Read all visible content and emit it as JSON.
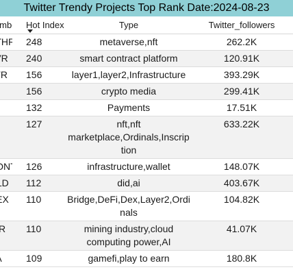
{
  "title": "Twitter Trendy Projects Top Rank Date:2024-08-23",
  "columns": {
    "symbol": "Symbol",
    "hot_index": "Hot Index",
    "type": "Type",
    "twitter_followers": "Twitter_followers"
  },
  "sort": {
    "column": "hot_index",
    "direction": "descending"
  },
  "rows": [
    {
      "symbol": "ETHR",
      "hot_index": "248",
      "type": "metaverse,nft",
      "twitter_followers": "262.2K"
    },
    {
      "symbol": "AVR",
      "hot_index": "240",
      "type": "smart contract platform",
      "twitter_followers": "120.91K"
    },
    {
      "symbol": "ATR",
      "hot_index": "156",
      "type": "layer1,layer2,Infrastructure",
      "twitter_followers": "393.29K"
    },
    {
      "symbol": "",
      "hot_index": "156",
      "type": "crypto media",
      "twitter_followers": "299.41K"
    },
    {
      "symbol": "",
      "hot_index": "132",
      "type": "Payments",
      "twitter_followers": "17.51K"
    },
    {
      "symbol": "",
      "hot_index": "127",
      "type": "nft,nft marketplace,Ordinals,Inscription",
      "twitter_followers": "633.22K"
    },
    {
      "symbol": "DONT",
      "hot_index": "126",
      "type": "infrastructure,wallet",
      "twitter_followers": "148.07K"
    },
    {
      "symbol": "OLD",
      "hot_index": "112",
      "type": "did,ai",
      "twitter_followers": "403.67K"
    },
    {
      "symbol": "REX",
      "hot_index": "110",
      "type": "Bridge,DeFi,Dex,Layer2,Ordinals",
      "twitter_followers": "104.82K"
    },
    {
      "symbol": "NIR",
      "hot_index": "110",
      "type": "mining industry,cloud computing power,AI",
      "twitter_followers": "41.07K"
    },
    {
      "symbol": "KA",
      "hot_index": "109",
      "type": "gamefi,play to earn",
      "twitter_followers": "180.8K"
    }
  ]
}
